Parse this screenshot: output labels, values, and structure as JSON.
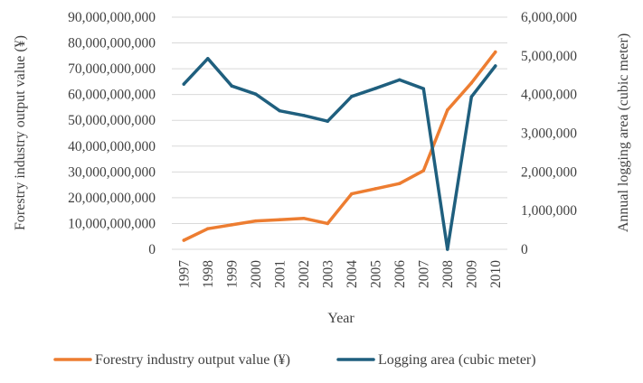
{
  "chart_data": {
    "type": "line",
    "xlabel": "Year",
    "ylabel_left": "Forestry industry output value (¥)",
    "ylabel_right": "Annual logging area (cubic meter)",
    "categories": [
      "1997",
      "1998",
      "1999",
      "2000",
      "2001",
      "2002",
      "2003",
      "2004",
      "2005",
      "2006",
      "2007",
      "2008",
      "2009",
      "2010"
    ],
    "ylim_left": [
      0,
      90000000000
    ],
    "ylim_right": [
      0,
      6000000
    ],
    "yticks_left": [
      "0",
      "10,000,000,000",
      "20,000,000,000",
      "30,000,000,000",
      "40,000,000,000",
      "50,000,000,000",
      "60,000,000,000",
      "70,000,000,000",
      "80,000,000,000",
      "90,000,000,000"
    ],
    "yticks_right": [
      "0",
      "1,000,000",
      "2,000,000",
      "3,000,000",
      "4,000,000",
      "5,000,000",
      "6,000,000"
    ],
    "grid": true,
    "legend_position": "bottom",
    "series": [
      {
        "name": "Forestry industry output value (¥)",
        "axis": "left",
        "color": "#ED7D31",
        "values": [
          3500000000,
          8000000000,
          9500000000,
          11000000000,
          11500000000,
          12000000000,
          10000000000,
          21500000000,
          23500000000,
          25500000000,
          30500000000,
          54000000000,
          64500000000,
          76500000000
        ]
      },
      {
        "name": "Logging area (cubic meter)",
        "axis": "right",
        "color": "#1F5F7E",
        "values": [
          4270000,
          4930000,
          4220000,
          4010000,
          3580000,
          3460000,
          3310000,
          3950000,
          4160000,
          4380000,
          4150000,
          0,
          3940000,
          4740000
        ]
      }
    ]
  }
}
